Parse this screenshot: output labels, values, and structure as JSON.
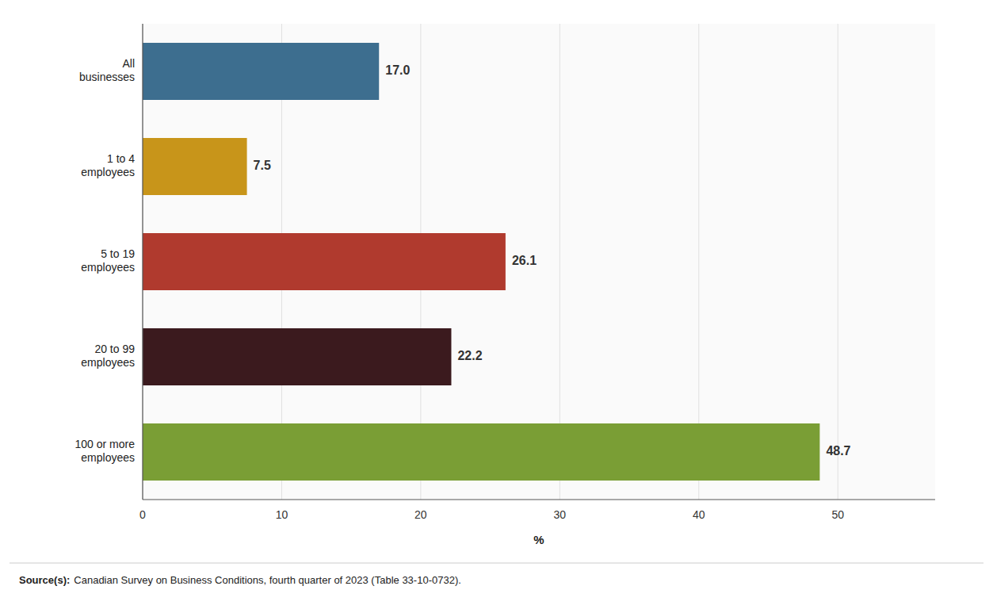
{
  "chart_data": {
    "type": "bar",
    "orientation": "horizontal",
    "categories": [
      "All\nbusinesses",
      "1 to 4\nemployees",
      "5 to 19\nemployees",
      "20 to 99\nemployees",
      "100 or more\nemployees"
    ],
    "values": [
      17.0,
      7.5,
      26.1,
      22.2,
      48.7
    ],
    "value_labels": [
      "17.0",
      "7.5",
      "26.1",
      "22.2",
      "48.7"
    ],
    "data_labels": true,
    "colors": [
      "#3d6e8f",
      "#c8951a",
      "#b03a2e",
      "#3b1a1e",
      "#7a9e35"
    ],
    "xlim": [
      0,
      57
    ],
    "xticks": [
      0,
      10,
      20,
      30,
      40,
      50
    ],
    "xlabel": "%",
    "grid": true,
    "annotations": [
      "Source(s):",
      "Canadian Survey on Business Conditions, fourth quarter of 2023 (Table 33-10-0732)."
    ]
  }
}
